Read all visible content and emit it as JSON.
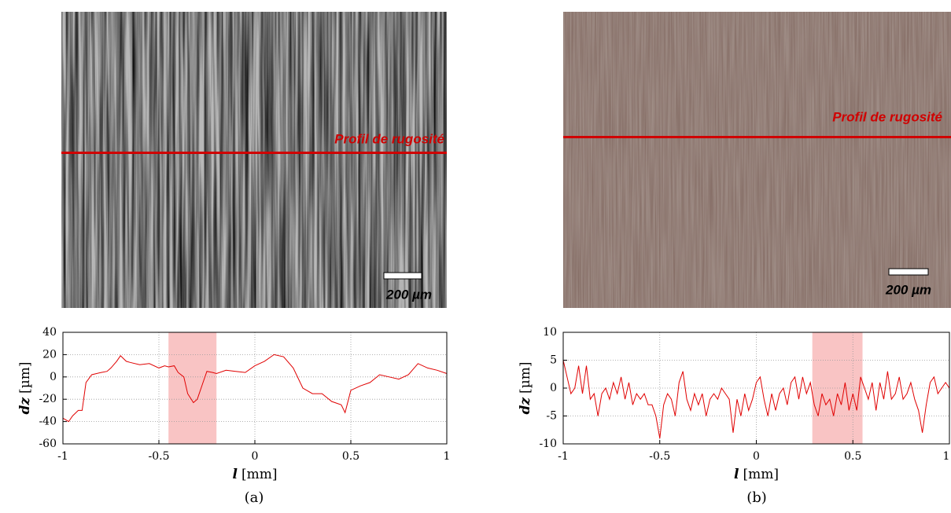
{
  "images": [
    {
      "annotation": "Profil de rugosité",
      "scale_bar": "200 µm"
    },
    {
      "annotation": "Profil de rugosité",
      "scale_bar": "200 µm"
    }
  ],
  "captions": [
    "(a)",
    "(b)"
  ],
  "chart_data": [
    {
      "type": "line",
      "ylabel_symbol": "dz",
      "ylabel_unit": "[µm]",
      "xlabel_symbol": "l",
      "xlabel_unit": "[mm]",
      "xlim": [
        -1,
        1
      ],
      "xticks": [
        -1,
        -0.5,
        0,
        0.5,
        1
      ],
      "ylim": [
        -60,
        40
      ],
      "yticks": [
        -60,
        -40,
        -20,
        0,
        20,
        40
      ],
      "grid": true,
      "highlight": [
        -0.45,
        -0.2
      ],
      "highlight_color": "#f9c4c4",
      "x": [
        -1,
        -0.97,
        -0.95,
        -0.92,
        -0.9,
        -0.88,
        -0.85,
        -0.8,
        -0.77,
        -0.75,
        -0.72,
        -0.7,
        -0.67,
        -0.65,
        -0.6,
        -0.55,
        -0.5,
        -0.47,
        -0.45,
        -0.42,
        -0.4,
        -0.37,
        -0.35,
        -0.32,
        -0.3,
        -0.27,
        -0.25,
        -0.22,
        -0.2,
        -0.15,
        -0.1,
        -0.05,
        0,
        0.05,
        0.1,
        0.15,
        0.2,
        0.25,
        0.3,
        0.35,
        0.4,
        0.45,
        0.47,
        0.5,
        0.55,
        0.6,
        0.65,
        0.7,
        0.75,
        0.8,
        0.85,
        0.9,
        0.95,
        1
      ],
      "series": [
        {
          "color": "#e00000",
          "values": [
            -37,
            -40,
            -35,
            -30,
            -30,
            -5,
            2,
            4,
            5,
            8,
            14,
            19,
            14,
            13,
            11,
            12,
            8,
            10,
            9,
            10,
            4,
            0,
            -15,
            -23,
            -20,
            -5,
            5,
            4,
            3,
            6,
            5,
            4,
            10,
            14,
            20,
            18,
            8,
            -10,
            -15,
            -15,
            -22,
            -25,
            -32,
            -12,
            -8,
            -5,
            2,
            0,
            -2,
            2,
            12,
            8,
            6,
            3
          ]
        }
      ]
    },
    {
      "type": "line",
      "ylabel_symbol": "dz",
      "ylabel_unit": "[µm]",
      "xlabel_symbol": "l",
      "xlabel_unit": "[mm]",
      "xlim": [
        -1,
        1
      ],
      "xticks": [
        -1,
        -0.5,
        0,
        0.5,
        1
      ],
      "ylim": [
        -10,
        10
      ],
      "yticks": [
        -10,
        -5,
        0,
        5,
        10
      ],
      "grid": true,
      "highlight": [
        0.29,
        0.55
      ],
      "highlight_color": "#f9c4c4",
      "x": [
        -1,
        -0.98,
        -0.96,
        -0.94,
        -0.92,
        -0.9,
        -0.88,
        -0.86,
        -0.84,
        -0.82,
        -0.8,
        -0.78,
        -0.76,
        -0.74,
        -0.72,
        -0.7,
        -0.68,
        -0.66,
        -0.64,
        -0.62,
        -0.6,
        -0.58,
        -0.56,
        -0.54,
        -0.52,
        -0.5,
        -0.48,
        -0.46,
        -0.44,
        -0.42,
        -0.4,
        -0.38,
        -0.36,
        -0.34,
        -0.32,
        -0.3,
        -0.28,
        -0.26,
        -0.24,
        -0.22,
        -0.2,
        -0.18,
        -0.16,
        -0.14,
        -0.12,
        -0.1,
        -0.08,
        -0.06,
        -0.04,
        -0.02,
        0,
        0.02,
        0.04,
        0.06,
        0.08,
        0.1,
        0.12,
        0.14,
        0.16,
        0.18,
        0.2,
        0.22,
        0.24,
        0.26,
        0.28,
        0.3,
        0.32,
        0.34,
        0.36,
        0.38,
        0.4,
        0.42,
        0.44,
        0.46,
        0.48,
        0.5,
        0.52,
        0.54,
        0.56,
        0.58,
        0.6,
        0.62,
        0.64,
        0.66,
        0.68,
        0.7,
        0.72,
        0.74,
        0.76,
        0.78,
        0.8,
        0.82,
        0.84,
        0.86,
        0.88,
        0.9,
        0.92,
        0.94,
        0.96,
        0.98,
        1
      ],
      "series": [
        {
          "color": "#e00000",
          "values": [
            5,
            2,
            -1,
            0,
            4,
            -1,
            4,
            -2,
            -1,
            -5,
            -1,
            0,
            -2,
            1,
            -1,
            2,
            -2,
            1,
            -3,
            -1,
            -2,
            -1,
            -3,
            -3,
            -5,
            -9,
            -3,
            -1,
            -2,
            -5,
            1,
            3,
            -2,
            -4,
            -1,
            -3,
            -1,
            -5,
            -2,
            -1,
            -2,
            0,
            -1,
            -2,
            -8,
            -2,
            -5,
            -1,
            -4,
            -2,
            1,
            2,
            -2,
            -5,
            -1,
            -4,
            -1,
            0,
            -3,
            1,
            2,
            -2,
            2,
            -1,
            1,
            -3,
            -5,
            -1,
            -3,
            -2,
            -5,
            -1,
            -3,
            1,
            -4,
            -1,
            -4,
            2,
            0,
            -2,
            1,
            -4,
            1,
            -2,
            3,
            -2,
            -1,
            2,
            -2,
            -1,
            1,
            -2,
            -4,
            -8,
            -3,
            1,
            2,
            -1,
            0,
            1,
            0
          ]
        }
      ]
    }
  ]
}
